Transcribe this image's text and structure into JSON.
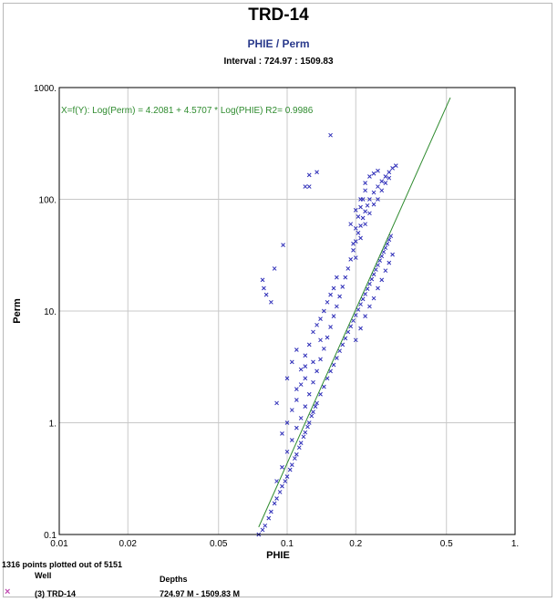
{
  "chart_data": {
    "type": "scatter",
    "title": "TRD-14",
    "subtitle": "PHIE / Perm",
    "interval_label": "Interval : 724.97 : 1509.83",
    "xlabel": "PHIE",
    "ylabel": "Perm",
    "x_scale": "log",
    "y_scale": "log",
    "xlim": [
      0.01,
      1
    ],
    "ylim": [
      0.1,
      1000
    ],
    "x_ticks": [
      0.01,
      0.02,
      0.05,
      0.1,
      0.2,
      0.5,
      1
    ],
    "x_tick_labels": [
      "0.01",
      "0.02",
      "0.05",
      "0.1",
      "0.2",
      "0.5",
      "1."
    ],
    "y_ticks": [
      0.1,
      1,
      10,
      100,
      1000
    ],
    "y_tick_labels": [
      "0.1",
      "1.",
      "10.",
      "100.",
      "1000."
    ],
    "grid": true,
    "regression": {
      "equation": "X=f(Y): Log(Perm) = 4.2081  +  4.5707 * Log(PHIE)   R2= 0.9986",
      "a": 4.2081,
      "b": 4.5707,
      "r2": 0.9986,
      "x_range": [
        0.075,
        0.52
      ],
      "color": "#2e8b2e"
    },
    "series_color": "#2d2db8",
    "points_shown": 1316,
    "points_total": 5151,
    "sample_points": [
      [
        0.075,
        0.1
      ],
      [
        0.078,
        0.11
      ],
      [
        0.08,
        0.12
      ],
      [
        0.083,
        0.14
      ],
      [
        0.085,
        0.16
      ],
      [
        0.088,
        0.19
      ],
      [
        0.09,
        0.21
      ],
      [
        0.093,
        0.24
      ],
      [
        0.095,
        0.27
      ],
      [
        0.098,
        0.3
      ],
      [
        0.1,
        0.33
      ],
      [
        0.103,
        0.38
      ],
      [
        0.105,
        0.42
      ],
      [
        0.108,
        0.48
      ],
      [
        0.11,
        0.52
      ],
      [
        0.113,
        0.6
      ],
      [
        0.115,
        0.66
      ],
      [
        0.118,
        0.75
      ],
      [
        0.12,
        0.82
      ],
      [
        0.123,
        0.92
      ],
      [
        0.125,
        1.0
      ],
      [
        0.128,
        1.15
      ],
      [
        0.13,
        1.25
      ],
      [
        0.133,
        1.4
      ],
      [
        0.135,
        1.5
      ],
      [
        0.14,
        1.8
      ],
      [
        0.145,
        2.1
      ],
      [
        0.15,
        2.5
      ],
      [
        0.155,
        2.9
      ],
      [
        0.16,
        3.3
      ],
      [
        0.165,
        3.8
      ],
      [
        0.17,
        4.4
      ],
      [
        0.175,
        5.0
      ],
      [
        0.18,
        5.7
      ],
      [
        0.185,
        6.5
      ],
      [
        0.19,
        7.3
      ],
      [
        0.195,
        8.2
      ],
      [
        0.2,
        9.2
      ],
      [
        0.205,
        10.3
      ],
      [
        0.21,
        11.5
      ],
      [
        0.215,
        12.8
      ],
      [
        0.22,
        14.2
      ],
      [
        0.225,
        15.8
      ],
      [
        0.23,
        17.5
      ],
      [
        0.235,
        19.3
      ],
      [
        0.24,
        21.3
      ],
      [
        0.245,
        23.5
      ],
      [
        0.25,
        25.8
      ],
      [
        0.255,
        28.3
      ],
      [
        0.26,
        31.0
      ],
      [
        0.265,
        33.8
      ],
      [
        0.27,
        36.8
      ],
      [
        0.275,
        40.0
      ],
      [
        0.28,
        43.5
      ],
      [
        0.285,
        47.0
      ],
      [
        0.09,
        0.3
      ],
      [
        0.095,
        0.4
      ],
      [
        0.1,
        0.55
      ],
      [
        0.105,
        0.7
      ],
      [
        0.11,
        0.9
      ],
      [
        0.115,
        1.1
      ],
      [
        0.12,
        1.4
      ],
      [
        0.125,
        1.8
      ],
      [
        0.13,
        2.3
      ],
      [
        0.135,
        2.9
      ],
      [
        0.14,
        3.7
      ],
      [
        0.145,
        4.6
      ],
      [
        0.15,
        5.8
      ],
      [
        0.155,
        7.2
      ],
      [
        0.16,
        9.0
      ],
      [
        0.165,
        11.0
      ],
      [
        0.17,
        13.5
      ],
      [
        0.175,
        16.5
      ],
      [
        0.18,
        20.0
      ],
      [
        0.185,
        24.0
      ],
      [
        0.19,
        29.0
      ],
      [
        0.195,
        35.0
      ],
      [
        0.2,
        42.0
      ],
      [
        0.205,
        50.0
      ],
      [
        0.21,
        58.0
      ],
      [
        0.215,
        68.0
      ],
      [
        0.22,
        78.0
      ],
      [
        0.225,
        88.0
      ],
      [
        0.23,
        100.0
      ],
      [
        0.24,
        115.0
      ],
      [
        0.25,
        130.0
      ],
      [
        0.26,
        145.0
      ],
      [
        0.27,
        160.0
      ],
      [
        0.28,
        175.0
      ],
      [
        0.29,
        190.0
      ],
      [
        0.3,
        200.0
      ],
      [
        0.195,
        40.0
      ],
      [
        0.2,
        55.0
      ],
      [
        0.205,
        70.0
      ],
      [
        0.21,
        85.0
      ],
      [
        0.215,
        100.0
      ],
      [
        0.22,
        120.0
      ],
      [
        0.2,
        30.0
      ],
      [
        0.21,
        45.0
      ],
      [
        0.22,
        60.0
      ],
      [
        0.23,
        75.0
      ],
      [
        0.24,
        90.0
      ],
      [
        0.25,
        100.0
      ],
      [
        0.26,
        120.0
      ],
      [
        0.27,
        140.0
      ],
      [
        0.28,
        155.0
      ],
      [
        0.19,
        60.0
      ],
      [
        0.2,
        80.0
      ],
      [
        0.21,
        100.0
      ],
      [
        0.22,
        140.0
      ],
      [
        0.23,
        160.0
      ],
      [
        0.24,
        170.0
      ],
      [
        0.25,
        180.0
      ],
      [
        0.12,
        4.0
      ],
      [
        0.125,
        5.0
      ],
      [
        0.13,
        6.5
      ],
      [
        0.135,
        7.5
      ],
      [
        0.14,
        8.5
      ],
      [
        0.145,
        10.0
      ],
      [
        0.15,
        12.0
      ],
      [
        0.155,
        14.0
      ],
      [
        0.16,
        16.0
      ],
      [
        0.165,
        20.0
      ],
      [
        0.11,
        2.0
      ],
      [
        0.115,
        3.0
      ],
      [
        0.12,
        2.5
      ],
      [
        0.13,
        3.5
      ],
      [
        0.14,
        5.5
      ],
      [
        0.1,
        1.0
      ],
      [
        0.105,
        1.3
      ],
      [
        0.11,
        1.6
      ],
      [
        0.115,
        2.2
      ],
      [
        0.12,
        3.2
      ],
      [
        0.2,
        5.5
      ],
      [
        0.21,
        7.0
      ],
      [
        0.22,
        9.0
      ],
      [
        0.23,
        11.0
      ],
      [
        0.24,
        13.0
      ],
      [
        0.25,
        16.0
      ],
      [
        0.26,
        19.0
      ],
      [
        0.27,
        23.0
      ],
      [
        0.28,
        27.0
      ],
      [
        0.29,
        32.0
      ],
      [
        0.078,
        19.0
      ],
      [
        0.079,
        16.0
      ],
      [
        0.081,
        14.0
      ],
      [
        0.085,
        12.0
      ],
      [
        0.088,
        24.0
      ],
      [
        0.096,
        39.0
      ],
      [
        0.12,
        130.0
      ],
      [
        0.125,
        130.0
      ],
      [
        0.125,
        165.0
      ],
      [
        0.135,
        175.0
      ],
      [
        0.155,
        375.0
      ],
      [
        0.1,
        2.5
      ],
      [
        0.105,
        3.5
      ],
      [
        0.11,
        4.5
      ],
      [
        0.09,
        1.5
      ],
      [
        0.095,
        0.8
      ]
    ]
  },
  "footer": {
    "points_text": "1316 points plotted out of 5151",
    "well_header": "Well",
    "depths_header": "Depths",
    "legend_marker": "×",
    "well_name": "(3) TRD-14",
    "depth_range": "724.97 M - 1509.83 M"
  }
}
